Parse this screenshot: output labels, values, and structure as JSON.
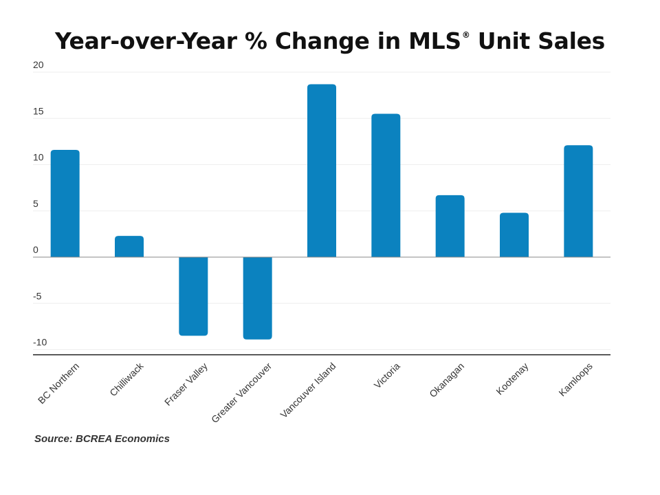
{
  "title": {
    "main": "Year-over-Year % Change in MLS",
    "registered_mark": "®",
    "suffix": " Unit Sales"
  },
  "source": "Source: BCREA Economics",
  "colors": {
    "bar": "#0B82BF",
    "axis": "#222222",
    "grid": "#eeeeee",
    "text": "#333333"
  },
  "chart_data": {
    "type": "bar",
    "title": "Year-over-Year % Change in MLS® Unit Sales",
    "xlabel": "",
    "ylabel": "",
    "categories": [
      "BC Northern",
      "Chilliwack",
      "Fraser Valley",
      "Greater Vancouver",
      "Vancouver Island",
      "Victoria",
      "Okanagan",
      "Kootenay",
      "Kamloops"
    ],
    "values": [
      11.6,
      2.3,
      -8.5,
      -8.9,
      18.7,
      15.5,
      6.7,
      4.8,
      12.1
    ],
    "ylim": [
      -10.5,
      20
    ],
    "yticks": [
      20,
      15,
      10,
      5,
      0,
      -5,
      -10
    ],
    "grid": true,
    "legend": "none"
  }
}
